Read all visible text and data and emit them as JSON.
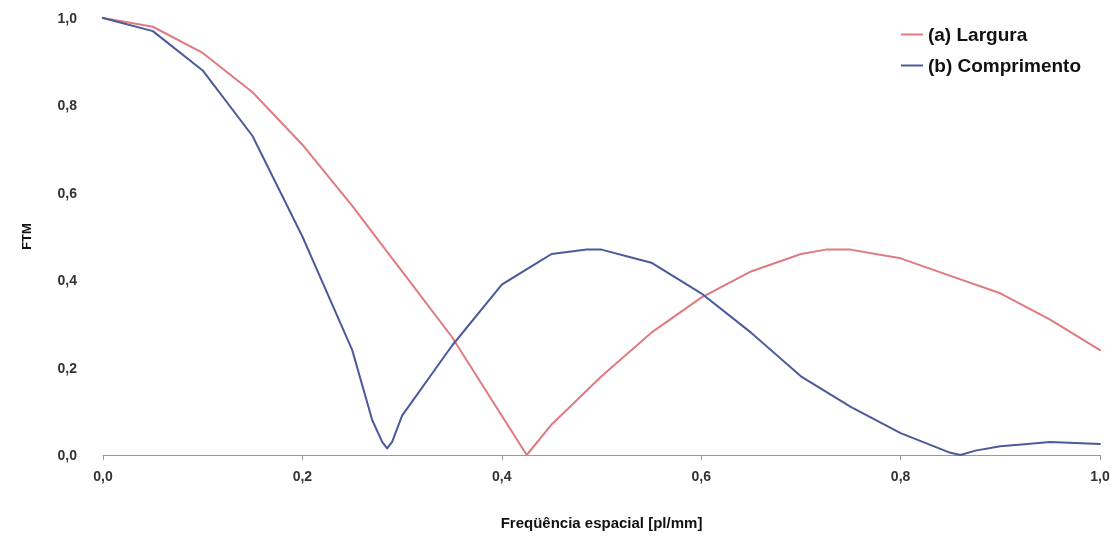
{
  "chart_data": {
    "type": "line",
    "xlabel": "Freqüência espacial [pl/mm]",
    "ylabel": "FTM",
    "xlim": [
      0,
      1
    ],
    "ylim": [
      0,
      1
    ],
    "xticks": [
      {
        "value": 0,
        "label": "0,0"
      },
      {
        "value": 0.2,
        "label": "0,2"
      },
      {
        "value": 0.4,
        "label": "0,4"
      },
      {
        "value": 0.6,
        "label": "0,6"
      },
      {
        "value": 0.8,
        "label": "0,8"
      },
      {
        "value": 1,
        "label": "1,0"
      }
    ],
    "yticks": [
      {
        "value": 0,
        "label": "0,0"
      },
      {
        "value": 0.2,
        "label": "0,2"
      },
      {
        "value": 0.4,
        "label": "0,4"
      },
      {
        "value": 0.6,
        "label": "0,6"
      },
      {
        "value": 0.8,
        "label": "0,8"
      },
      {
        "value": 1,
        "label": "1,0"
      }
    ],
    "grid": false,
    "legend": "top right",
    "marker": "none",
    "line_style": "solid",
    "series": [
      {
        "name": "(a) Largura",
        "color": "#e07a80",
        "x": [
          0,
          0.05,
          0.1,
          0.15,
          0.2,
          0.25,
          0.3,
          0.35,
          0.4,
          0.425,
          0.45,
          0.5,
          0.55,
          0.6,
          0.65,
          0.7,
          0.725,
          0.75,
          0.8,
          0.85,
          0.9,
          0.95,
          1.0
        ],
        "values": [
          1.0,
          0.98,
          0.92,
          0.83,
          0.71,
          0.57,
          0.42,
          0.27,
          0.09,
          0.0,
          0.07,
          0.18,
          0.28,
          0.36,
          0.42,
          0.46,
          0.47,
          0.47,
          0.45,
          0.41,
          0.37,
          0.31,
          0.24
        ]
      },
      {
        "name": "(b) Comprimento",
        "color": "#4a5a9a",
        "x": [
          0,
          0.05,
          0.1,
          0.15,
          0.2,
          0.25,
          0.27,
          0.28,
          0.285,
          0.29,
          0.3,
          0.35,
          0.4,
          0.45,
          0.485,
          0.5,
          0.55,
          0.6,
          0.65,
          0.7,
          0.75,
          0.8,
          0.85,
          0.86,
          0.875,
          0.9,
          0.95,
          1.0
        ],
        "values": [
          1.0,
          0.97,
          0.88,
          0.73,
          0.5,
          0.24,
          0.08,
          0.03,
          0.015,
          0.03,
          0.09,
          0.25,
          0.39,
          0.46,
          0.47,
          0.47,
          0.44,
          0.37,
          0.28,
          0.18,
          0.11,
          0.05,
          0.005,
          0.0,
          0.01,
          0.02,
          0.03,
          0.025
        ]
      }
    ]
  }
}
